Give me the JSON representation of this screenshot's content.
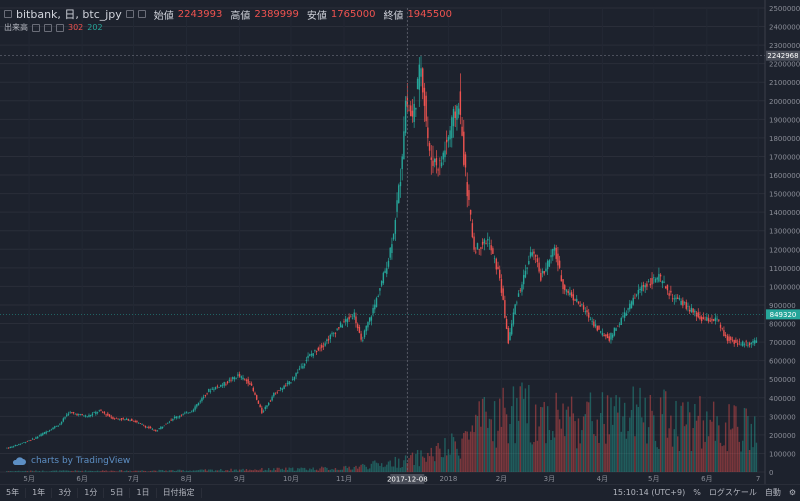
{
  "header": {
    "symbol": "bitbank, 日, btc_jpy",
    "open_label": "始値",
    "open_value": "2243993",
    "high_label": "高値",
    "high_value": "2389999",
    "low_label": "安値",
    "low_value": "1765000",
    "close_label": "終値",
    "close_value": "1945500"
  },
  "volume": {
    "label": "出来高",
    "down_value": "302",
    "up_value": "202"
  },
  "watermark": "charts by TradingView",
  "crosshair": {
    "date_label": "2017-12-08",
    "price_label": "2242968",
    "price": 2242968
  },
  "last_price": {
    "label": "849320",
    "price": 849320
  },
  "toolbar": {
    "ranges": [
      "5年",
      "1年",
      "3分",
      "1分",
      "5日",
      "1日",
      "日付指定"
    ],
    "time": "15:10:14 (UTC+9)",
    "percent": "%",
    "log": "ログスケール",
    "auto": "自動"
  },
  "colors": {
    "up": "#26a69a",
    "down": "#ef5350",
    "background": "#1d222d",
    "grid": "#2a2e39"
  },
  "chart_data": {
    "type": "candlestick",
    "title": "",
    "ylim": [
      0,
      2500000
    ],
    "y_ticks": [
      0,
      100000,
      200000,
      300000,
      400000,
      500000,
      600000,
      700000,
      800000,
      900000,
      1000000,
      1100000,
      1200000,
      1300000,
      1400000,
      1500000,
      1600000,
      1700000,
      1800000,
      1900000,
      2000000,
      2100000,
      2200000,
      2300000,
      2400000,
      2500000
    ],
    "x_labels": [
      "5月",
      "6月",
      "7月",
      "8月",
      "9月",
      "10月",
      "11月",
      "2017-12-08",
      "2018",
      "2月",
      "3月",
      "4月",
      "5月",
      "6月",
      "7"
    ],
    "price_path": [
      [
        "2017-04-20",
        130000
      ],
      [
        "2017-05-05",
        180000
      ],
      [
        "2017-05-20",
        260000
      ],
      [
        "2017-05-25",
        320000
      ],
      [
        "2017-06-05",
        300000
      ],
      [
        "2017-06-12",
        330000
      ],
      [
        "2017-06-20",
        290000
      ],
      [
        "2017-07-01",
        280000
      ],
      [
        "2017-07-15",
        220000
      ],
      [
        "2017-07-25",
        290000
      ],
      [
        "2017-08-05",
        330000
      ],
      [
        "2017-08-15",
        440000
      ],
      [
        "2017-08-25",
        480000
      ],
      [
        "2017-09-01",
        520000
      ],
      [
        "2017-09-08",
        480000
      ],
      [
        "2017-09-15",
        320000
      ],
      [
        "2017-09-22",
        420000
      ],
      [
        "2017-10-01",
        480000
      ],
      [
        "2017-10-12",
        620000
      ],
      [
        "2017-10-20",
        680000
      ],
      [
        "2017-11-01",
        800000
      ],
      [
        "2017-11-08",
        850000
      ],
      [
        "2017-11-12",
        700000
      ],
      [
        "2017-11-20",
        900000
      ],
      [
        "2017-11-28",
        1150000
      ],
      [
        "2017-12-01",
        1300000
      ],
      [
        "2017-12-05",
        1600000
      ],
      [
        "2017-12-08",
        2000000
      ],
      [
        "2017-12-12",
        1900000
      ],
      [
        "2017-12-17",
        2200000
      ],
      [
        "2017-12-22",
        1700000
      ],
      [
        "2017-12-28",
        1650000
      ],
      [
        "2018-01-05",
        1900000
      ],
      [
        "2018-01-08",
        2000000
      ],
      [
        "2018-01-12",
        1600000
      ],
      [
        "2018-01-17",
        1200000
      ],
      [
        "2018-01-25",
        1250000
      ],
      [
        "2018-02-01",
        1050000
      ],
      [
        "2018-02-06",
        700000
      ],
      [
        "2018-02-10",
        900000
      ],
      [
        "2018-02-20",
        1200000
      ],
      [
        "2018-02-25",
        1050000
      ],
      [
        "2018-03-05",
        1200000
      ],
      [
        "2018-03-10",
        1000000
      ],
      [
        "2018-03-20",
        900000
      ],
      [
        "2018-04-01",
        750000
      ],
      [
        "2018-04-06",
        720000
      ],
      [
        "2018-04-15",
        850000
      ],
      [
        "2018-04-25",
        1000000
      ],
      [
        "2018-05-05",
        1050000
      ],
      [
        "2018-05-12",
        950000
      ],
      [
        "2018-05-20",
        900000
      ],
      [
        "2018-05-30",
        820000
      ],
      [
        "2018-06-08",
        820000
      ],
      [
        "2018-06-13",
        720000
      ],
      [
        "2018-06-22",
        690000
      ],
      [
        "2018-07-01",
        700000
      ]
    ],
    "volume_path": [
      [
        "2017-04-20",
        5000
      ],
      [
        "2017-08-01",
        8000
      ],
      [
        "2017-11-01",
        20000
      ],
      [
        "2017-12-08",
        60000
      ],
      [
        "2018-01-01",
        120000
      ],
      [
        "2018-01-20",
        250000
      ],
      [
        "2018-02-06",
        320000
      ],
      [
        "2018-03-01",
        300000
      ],
      [
        "2018-04-01",
        280000
      ],
      [
        "2018-05-01",
        300000
      ],
      [
        "2018-06-01",
        260000
      ],
      [
        "2018-07-01",
        210000
      ]
    ]
  }
}
